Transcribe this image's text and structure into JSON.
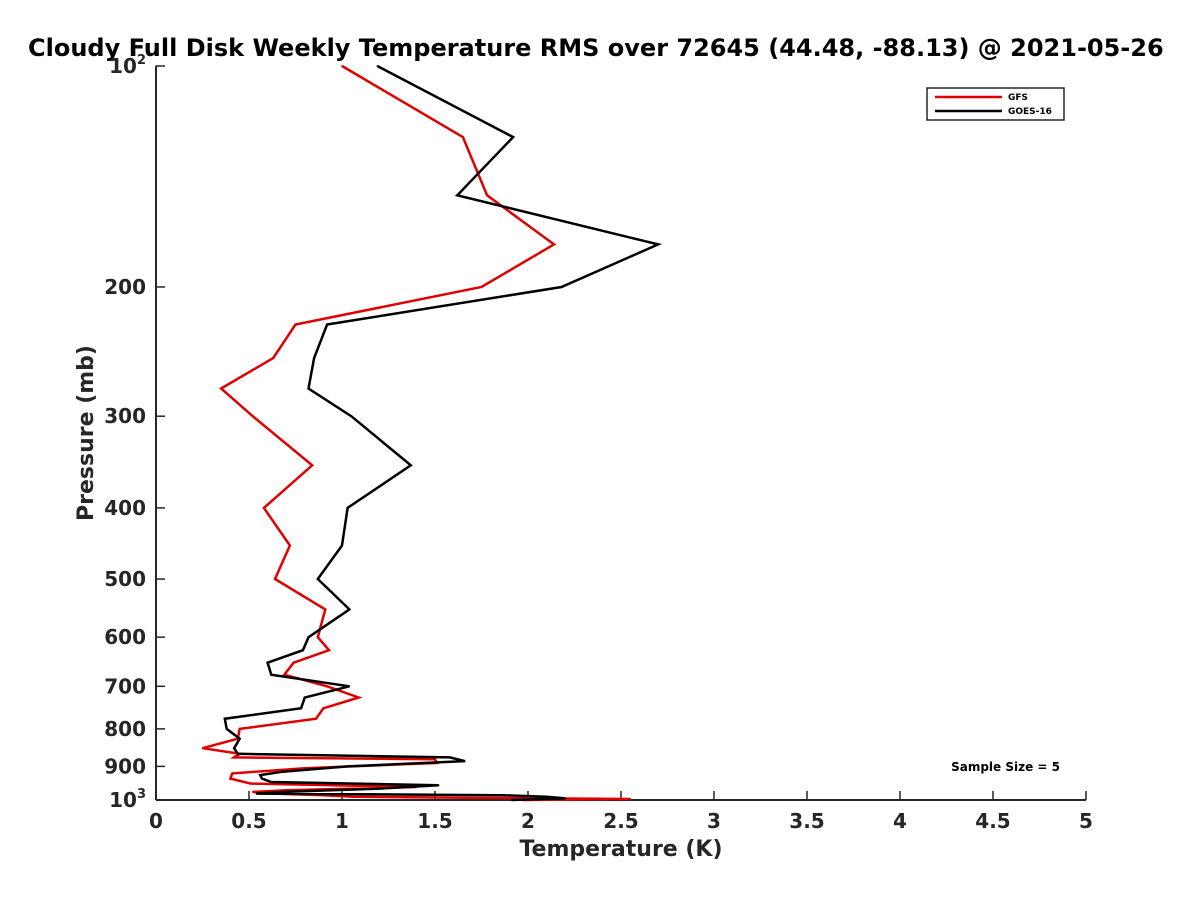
{
  "chart_data": {
    "type": "line",
    "title": "Cloudy Full Disk Weekly Temperature RMS over 72645 (44.48, -88.13) @ 2021-05-26",
    "xlabel": "Temperature (K)",
    "ylabel": "Pressure (mb)",
    "xlim": [
      0,
      5
    ],
    "ylim": [
      100,
      1000
    ],
    "y_scale": "log",
    "y_reversed": true,
    "grid": false,
    "legend_position": "top-right",
    "x_ticks": [
      {
        "value": 0,
        "label": "0"
      },
      {
        "value": 0.5,
        "label": "0.5"
      },
      {
        "value": 1,
        "label": "1"
      },
      {
        "value": 1.5,
        "label": "1.5"
      },
      {
        "value": 2,
        "label": "2"
      },
      {
        "value": 2.5,
        "label": "2.5"
      },
      {
        "value": 3,
        "label": "3"
      },
      {
        "value": 3.5,
        "label": "3.5"
      },
      {
        "value": 4,
        "label": "4"
      },
      {
        "value": 4.5,
        "label": "4.5"
      },
      {
        "value": 5,
        "label": "5"
      }
    ],
    "y_ticks": [
      {
        "value": 100,
        "label": "10",
        "sup": "2"
      },
      {
        "value": 200,
        "label": "200",
        "sup": ""
      },
      {
        "value": 300,
        "label": "300",
        "sup": ""
      },
      {
        "value": 400,
        "label": "400",
        "sup": ""
      },
      {
        "value": 500,
        "label": "500",
        "sup": ""
      },
      {
        "value": 600,
        "label": "600",
        "sup": ""
      },
      {
        "value": 700,
        "label": "700",
        "sup": ""
      },
      {
        "value": 800,
        "label": "800",
        "sup": ""
      },
      {
        "value": 900,
        "label": "900",
        "sup": ""
      },
      {
        "value": 1000,
        "label": "10",
        "sup": "3"
      }
    ],
    "annotation": "Sample Size = 5",
    "series": [
      {
        "name": "GFS",
        "color": "#e00000",
        "points": [
          {
            "x": 1.0,
            "p": 100
          },
          {
            "x": 1.65,
            "p": 125
          },
          {
            "x": 1.78,
            "p": 150
          },
          {
            "x": 2.14,
            "p": 175
          },
          {
            "x": 1.75,
            "p": 200
          },
          {
            "x": 0.75,
            "p": 225
          },
          {
            "x": 0.63,
            "p": 250
          },
          {
            "x": 0.35,
            "p": 275
          },
          {
            "x": 0.52,
            "p": 300
          },
          {
            "x": 0.84,
            "p": 350
          },
          {
            "x": 0.58,
            "p": 400
          },
          {
            "x": 0.72,
            "p": 450
          },
          {
            "x": 0.64,
            "p": 500
          },
          {
            "x": 0.91,
            "p": 550
          },
          {
            "x": 0.87,
            "p": 600
          },
          {
            "x": 0.93,
            "p": 625
          },
          {
            "x": 0.74,
            "p": 650
          },
          {
            "x": 0.69,
            "p": 675
          },
          {
            "x": 0.92,
            "p": 700
          },
          {
            "x": 1.09,
            "p": 725
          },
          {
            "x": 0.9,
            "p": 750
          },
          {
            "x": 0.86,
            "p": 775
          },
          {
            "x": 0.45,
            "p": 800
          },
          {
            "x": 0.44,
            "p": 825
          },
          {
            "x": 0.25,
            "p": 850
          },
          {
            "x": 0.45,
            "p": 865
          },
          {
            "x": 0.42,
            "p": 875
          },
          {
            "x": 1.5,
            "p": 880
          },
          {
            "x": 1.51,
            "p": 890
          },
          {
            "x": 0.8,
            "p": 905
          },
          {
            "x": 0.41,
            "p": 920
          },
          {
            "x": 0.4,
            "p": 935
          },
          {
            "x": 0.51,
            "p": 950
          },
          {
            "x": 1.4,
            "p": 960
          },
          {
            "x": 0.7,
            "p": 970
          },
          {
            "x": 0.52,
            "p": 975
          },
          {
            "x": 0.64,
            "p": 980
          },
          {
            "x": 0.9,
            "p": 985
          },
          {
            "x": 1.06,
            "p": 990
          },
          {
            "x": 2.1,
            "p": 995
          },
          {
            "x": 2.55,
            "p": 997
          },
          {
            "x": 1.97,
            "p": 1000
          }
        ]
      },
      {
        "name": "GOES-16",
        "color": "#000000",
        "points": [
          {
            "x": 1.19,
            "p": 100
          },
          {
            "x": 1.92,
            "p": 125
          },
          {
            "x": 1.62,
            "p": 150
          },
          {
            "x": 2.7,
            "p": 175
          },
          {
            "x": 2.18,
            "p": 200
          },
          {
            "x": 0.92,
            "p": 225
          },
          {
            "x": 0.85,
            "p": 250
          },
          {
            "x": 0.82,
            "p": 275
          },
          {
            "x": 1.05,
            "p": 300
          },
          {
            "x": 1.37,
            "p": 350
          },
          {
            "x": 1.03,
            "p": 400
          },
          {
            "x": 1.0,
            "p": 450
          },
          {
            "x": 0.87,
            "p": 500
          },
          {
            "x": 1.04,
            "p": 550
          },
          {
            "x": 0.82,
            "p": 600
          },
          {
            "x": 0.79,
            "p": 625
          },
          {
            "x": 0.6,
            "p": 650
          },
          {
            "x": 0.62,
            "p": 675
          },
          {
            "x": 1.04,
            "p": 700
          },
          {
            "x": 0.8,
            "p": 725
          },
          {
            "x": 0.78,
            "p": 750
          },
          {
            "x": 0.37,
            "p": 775
          },
          {
            "x": 0.38,
            "p": 800
          },
          {
            "x": 0.45,
            "p": 825
          },
          {
            "x": 0.42,
            "p": 850
          },
          {
            "x": 0.44,
            "p": 865
          },
          {
            "x": 1.58,
            "p": 875
          },
          {
            "x": 1.66,
            "p": 885
          },
          {
            "x": 1.03,
            "p": 900
          },
          {
            "x": 0.68,
            "p": 915
          },
          {
            "x": 0.56,
            "p": 925
          },
          {
            "x": 0.57,
            "p": 935
          },
          {
            "x": 0.62,
            "p": 945
          },
          {
            "x": 1.52,
            "p": 955
          },
          {
            "x": 1.2,
            "p": 965
          },
          {
            "x": 0.69,
            "p": 975
          },
          {
            "x": 0.54,
            "p": 980
          },
          {
            "x": 1.86,
            "p": 985
          },
          {
            "x": 2.1,
            "p": 990
          },
          {
            "x": 2.2,
            "p": 995
          },
          {
            "x": 2.08,
            "p": 997
          },
          {
            "x": 1.91,
            "p": 1000
          }
        ]
      }
    ]
  }
}
